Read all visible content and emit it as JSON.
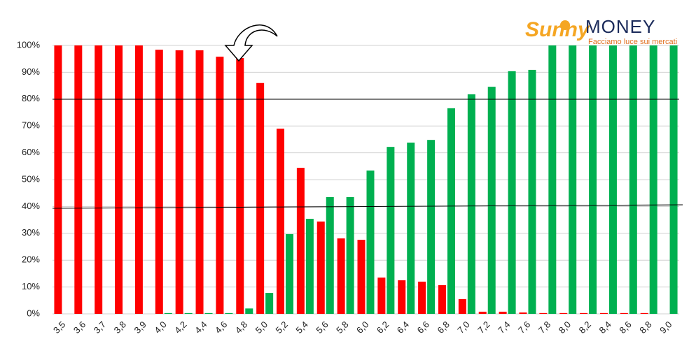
{
  "chart_data": {
    "type": "bar",
    "logo_text": "Sunny",
    "logo_text2": "MONEY",
    "logo_tagline": "Facciamo luce sui mercati",
    "categories": [
      "3,5",
      "3,6",
      "3,7",
      "3,8",
      "3,9",
      "4,0",
      "4,2",
      "4,4",
      "4,6",
      "4,8",
      "5,0",
      "5,2",
      "5,4",
      "5,6",
      "5,8",
      "6,0",
      "6,2",
      "6,4",
      "6,6",
      "6,8",
      "7,0",
      "7,2",
      "7,4",
      "7,6",
      "7,8",
      "8,0",
      "8,2",
      "8,4",
      "8,6",
      "8,8",
      "9,0"
    ],
    "series": [
      {
        "color": "#ff0000",
        "values": [
          100,
          100,
          100,
          100,
          100,
          98.4,
          98.2,
          98.2,
          95.8,
          95.3,
          86,
          69,
          54.4,
          34.4,
          28.1,
          27.6,
          13.5,
          12.5,
          12,
          10.7,
          5.5,
          0.8,
          0.8,
          0.5,
          0.3,
          0.3,
          0.3,
          0.3,
          0.3,
          0.3,
          0
        ]
      },
      {
        "color": "#00b050",
        "values": [
          0,
          0,
          0,
          0,
          0,
          0.3,
          0.3,
          0.3,
          0.3,
          2,
          7.8,
          29.7,
          35.4,
          43.5,
          43.5,
          53.4,
          62.2,
          63.8,
          64.8,
          76.6,
          81.8,
          84.6,
          90.4,
          90.9,
          100,
          100,
          100,
          100,
          100,
          100,
          100
        ]
      }
    ],
    "ylim": [
      0,
      100
    ],
    "yticks": [
      {
        "value": 0,
        "label": "0%"
      },
      {
        "value": 10,
        "label": "10%"
      },
      {
        "value": 20,
        "label": "20%"
      },
      {
        "value": 30,
        "label": "30%"
      },
      {
        "value": 40,
        "label": "40%"
      },
      {
        "value": 50,
        "label": "50%"
      },
      {
        "value": 60,
        "label": "60%"
      },
      {
        "value": 70,
        "label": "70%"
      },
      {
        "value": 80,
        "label": "80%"
      },
      {
        "value": 90,
        "label": "90%"
      },
      {
        "value": 100,
        "label": "100%"
      }
    ],
    "grid": true
  }
}
